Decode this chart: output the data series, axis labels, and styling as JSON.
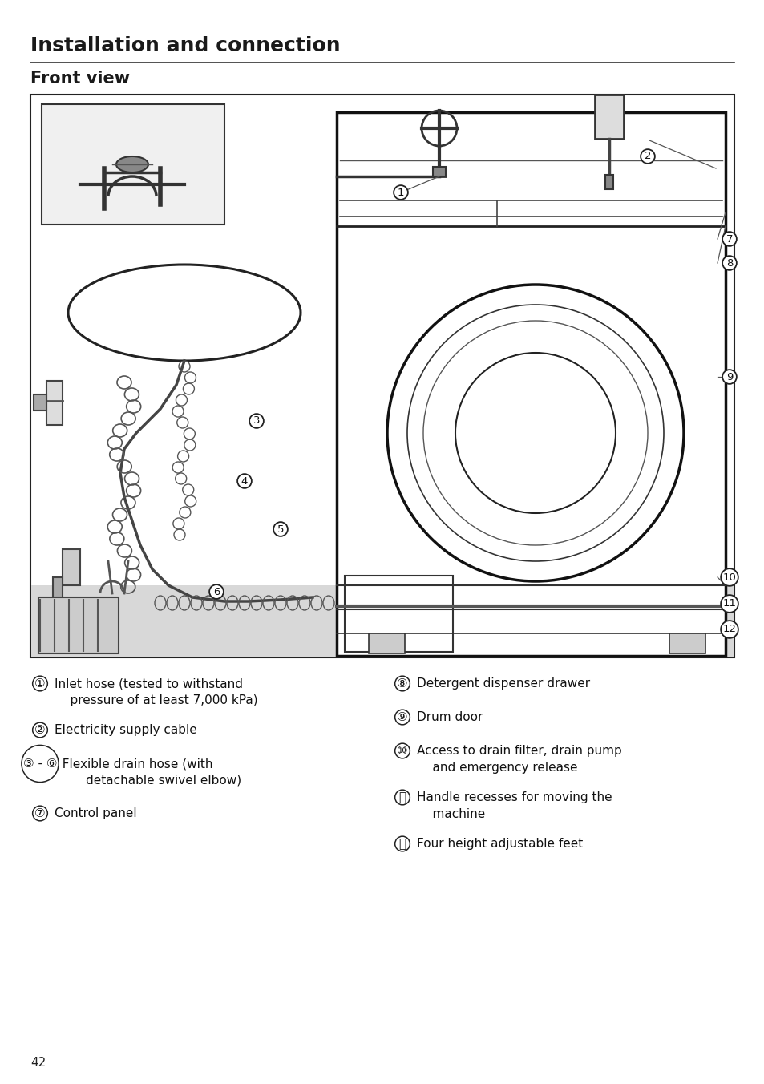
{
  "title": "Installation and connection",
  "subtitle": "Front view",
  "bg_color": "#ffffff",
  "title_fontsize": 18,
  "subtitle_fontsize": 15,
  "body_fontsize": 11,
  "page_number": "42",
  "legend_left": [
    [
      "①",
      "Inlet hose (tested to withstand\n    pressure of at least 7,000 kPa)"
    ],
    [
      "②",
      "Electricity supply cable"
    ],
    [
      "③ - ⑥",
      "  Flexible drain hose (with\n        detachable swivel elbow)"
    ],
    [
      "⑦",
      "Control panel"
    ]
  ],
  "legend_right": [
    [
      "⑧",
      "Detergent dispenser drawer"
    ],
    [
      "⑨",
      "Drum door"
    ],
    [
      "⑩",
      "Access to drain filter, drain pump\n    and emergency release"
    ],
    [
      "⑪",
      "Handle recesses for moving the\n    machine"
    ],
    [
      "⑫",
      "Four height adjustable feet"
    ]
  ]
}
